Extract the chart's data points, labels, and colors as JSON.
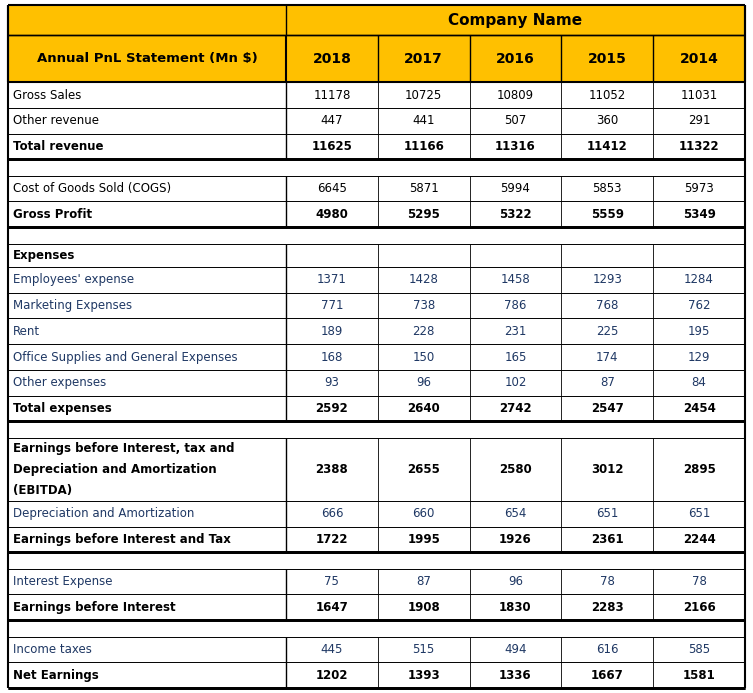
{
  "title": "Company Name",
  "header_label": "Annual PnL Statement (Mn $)",
  "years": [
    "2018",
    "2017",
    "2016",
    "2015",
    "2014"
  ],
  "header_bg": "#FFC000",
  "border_color": "#000000",
  "text_color_blue": "#1F3864",
  "text_color_black": "#000000",
  "fig_width": 7.53,
  "fig_height": 6.93,
  "dpi": 100,
  "rows": [
    {
      "label": "Gross Sales",
      "values": [
        "11178",
        "10725",
        "10809",
        "11052",
        "11031"
      ],
      "bold": false,
      "type": "normal",
      "blue": false
    },
    {
      "label": "Other revenue",
      "values": [
        "447",
        "441",
        "507",
        "360",
        "291"
      ],
      "bold": false,
      "type": "normal",
      "blue": false
    },
    {
      "label": "Total revenue",
      "values": [
        "11625",
        "11166",
        "11316",
        "11412",
        "11322"
      ],
      "bold": true,
      "type": "total",
      "blue": false
    },
    {
      "label": "",
      "values": [
        "",
        "",
        "",
        "",
        ""
      ],
      "bold": false,
      "type": "spacer",
      "blue": false
    },
    {
      "label": "Cost of Goods Sold (COGS)",
      "values": [
        "6645",
        "5871",
        "5994",
        "5853",
        "5973"
      ],
      "bold": false,
      "type": "normal",
      "blue": false
    },
    {
      "label": "Gross Profit",
      "values": [
        "4980",
        "5295",
        "5322",
        "5559",
        "5349"
      ],
      "bold": true,
      "type": "total",
      "blue": false
    },
    {
      "label": "",
      "values": [
        "",
        "",
        "",
        "",
        ""
      ],
      "bold": false,
      "type": "spacer",
      "blue": false
    },
    {
      "label": "Expenses",
      "values": [
        "",
        "",
        "",
        "",
        ""
      ],
      "bold": true,
      "type": "section",
      "blue": false
    },
    {
      "label": "Employees' expense",
      "values": [
        "1371",
        "1428",
        "1458",
        "1293",
        "1284"
      ],
      "bold": false,
      "type": "normal",
      "blue": true
    },
    {
      "label": "Marketing Expenses",
      "values": [
        "771",
        "738",
        "786",
        "768",
        "762"
      ],
      "bold": false,
      "type": "normal",
      "blue": true
    },
    {
      "label": "Rent",
      "values": [
        "189",
        "228",
        "231",
        "225",
        "195"
      ],
      "bold": false,
      "type": "normal",
      "blue": true
    },
    {
      "label": "Office Supplies and General Expenses",
      "values": [
        "168",
        "150",
        "165",
        "174",
        "129"
      ],
      "bold": false,
      "type": "normal",
      "blue": true
    },
    {
      "label": "Other expenses",
      "values": [
        "93",
        "96",
        "102",
        "87",
        "84"
      ],
      "bold": false,
      "type": "normal",
      "blue": true
    },
    {
      "label": "Total expenses",
      "values": [
        "2592",
        "2640",
        "2742",
        "2547",
        "2454"
      ],
      "bold": true,
      "type": "total",
      "blue": false
    },
    {
      "label": "",
      "values": [
        "",
        "",
        "",
        "",
        ""
      ],
      "bold": false,
      "type": "spacer",
      "blue": false
    },
    {
      "label": "Earnings before Interest, tax and\nDepreciation and Amortization\n(EBITDA)",
      "values": [
        "2388",
        "2655",
        "2580",
        "3012",
        "2895"
      ],
      "bold": true,
      "type": "ebitda",
      "blue": false
    },
    {
      "label": "Depreciation and Amortization",
      "values": [
        "666",
        "660",
        "654",
        "651",
        "651"
      ],
      "bold": false,
      "type": "normal",
      "blue": true
    },
    {
      "label": "Earnings before Interest and Tax",
      "values": [
        "1722",
        "1995",
        "1926",
        "2361",
        "2244"
      ],
      "bold": true,
      "type": "total",
      "blue": false
    },
    {
      "label": "",
      "values": [
        "",
        "",
        "",
        "",
        ""
      ],
      "bold": false,
      "type": "spacer",
      "blue": false
    },
    {
      "label": "Interest Expense",
      "values": [
        "75",
        "87",
        "96",
        "78",
        "78"
      ],
      "bold": false,
      "type": "normal",
      "blue": true
    },
    {
      "label": "Earnings before Interest",
      "values": [
        "1647",
        "1908",
        "1830",
        "2283",
        "2166"
      ],
      "bold": true,
      "type": "total",
      "blue": false
    },
    {
      "label": "",
      "values": [
        "",
        "",
        "",
        "",
        ""
      ],
      "bold": false,
      "type": "spacer",
      "blue": false
    },
    {
      "label": "Income taxes",
      "values": [
        "445",
        "515",
        "494",
        "616",
        "585"
      ],
      "bold": false,
      "type": "normal",
      "blue": true
    },
    {
      "label": "Net Earnings",
      "values": [
        "1202",
        "1393",
        "1336",
        "1667",
        "1581"
      ],
      "bold": true,
      "type": "total",
      "blue": false
    }
  ]
}
